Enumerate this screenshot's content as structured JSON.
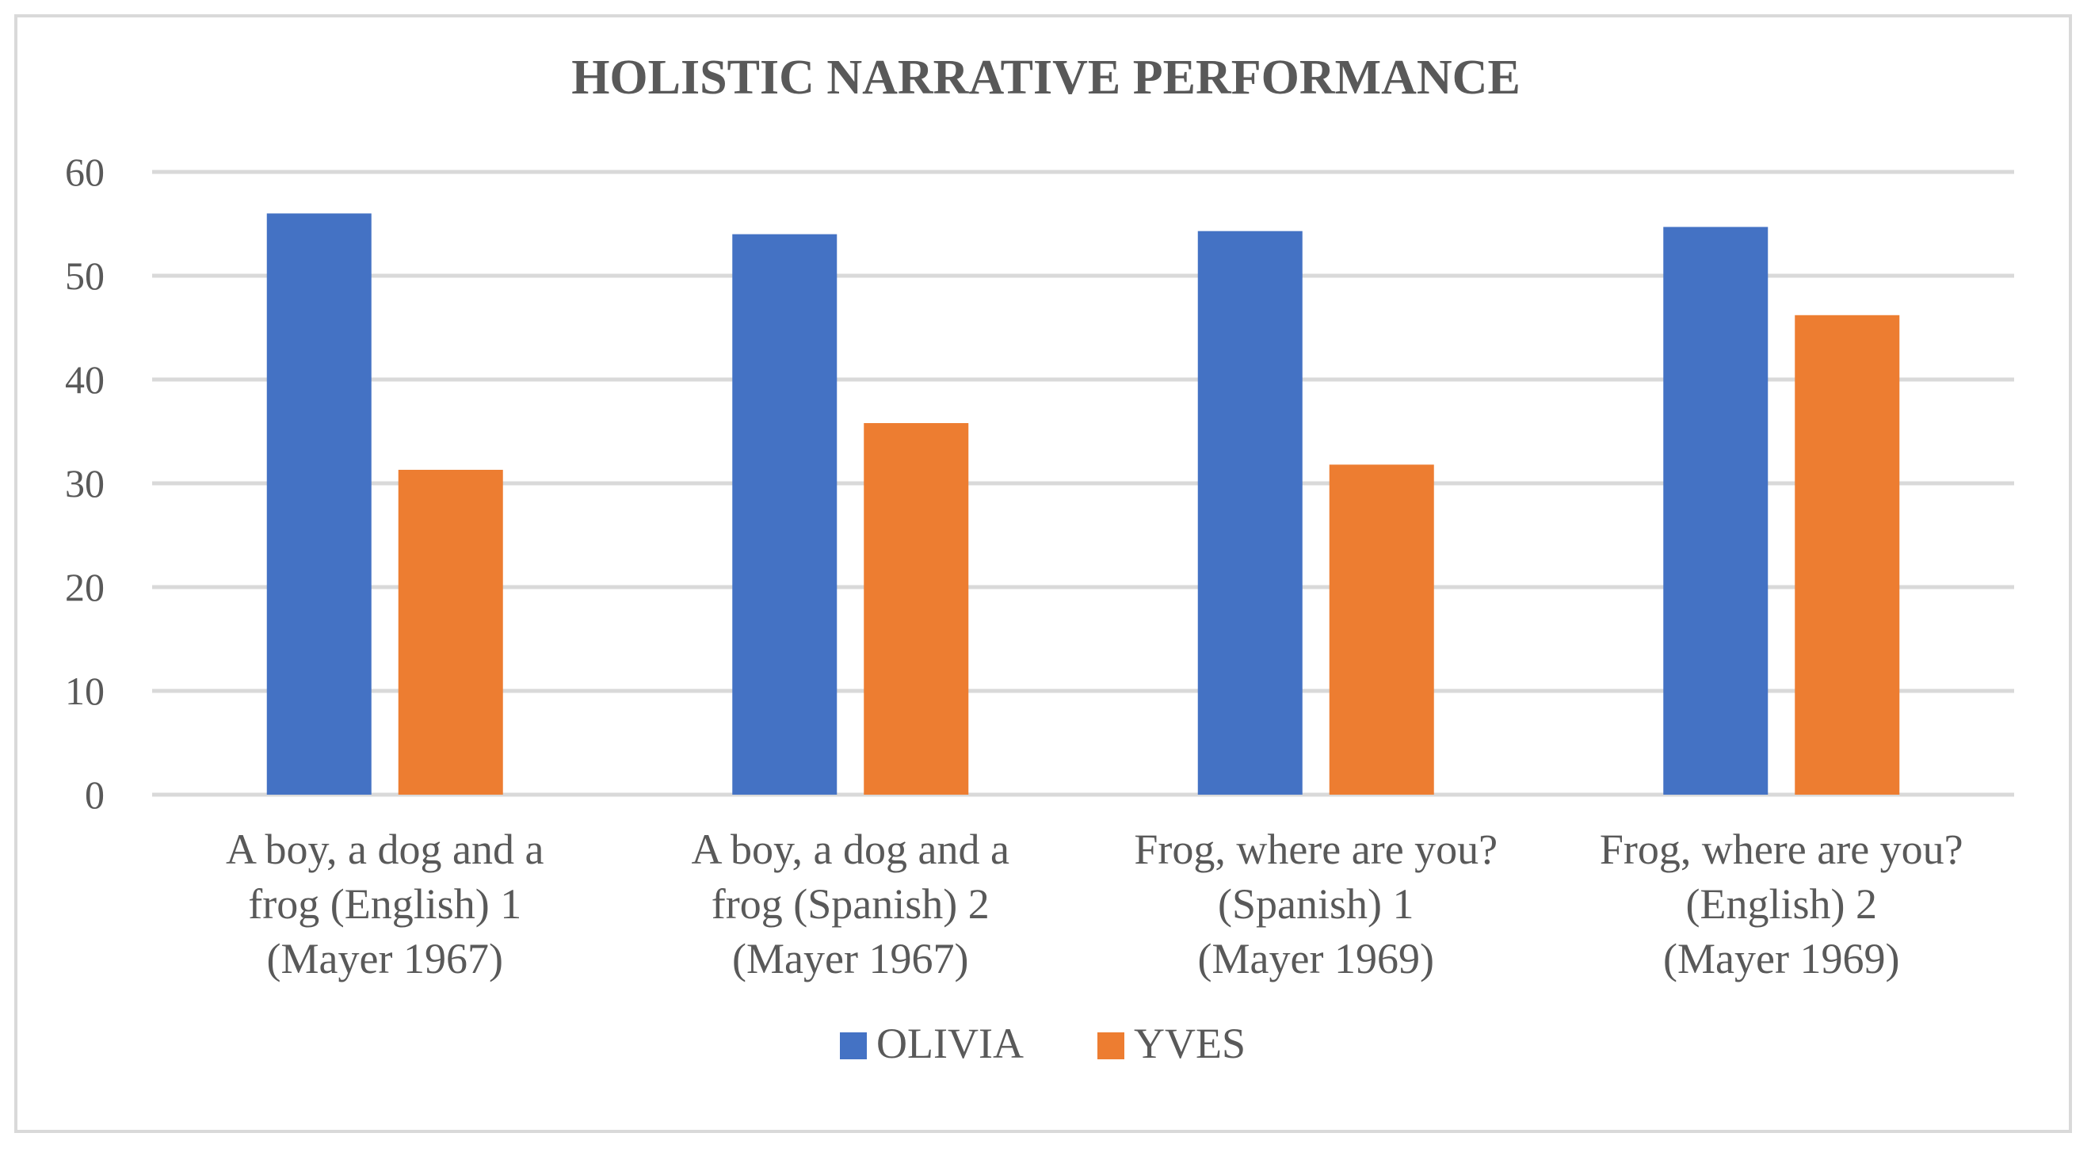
{
  "chart_data": {
    "type": "bar",
    "title": "HOLISTIC NARRATIVE PERFORMANCE",
    "xlabel": "",
    "ylabel": "",
    "ylim": [
      0,
      60
    ],
    "yticks": [
      0,
      10,
      20,
      30,
      40,
      50,
      60
    ],
    "grid": true,
    "legend_position": "bottom",
    "categories": [
      [
        "A boy, a dog and a",
        "frog (English) 1",
        "(Mayer 1967)"
      ],
      [
        "A boy, a dog and a",
        "frog (Spanish) 2",
        "(Mayer 1967)"
      ],
      [
        "Frog, where are you?",
        "(Spanish) 1",
        "(Mayer 1969)"
      ],
      [
        "Frog, where are you?",
        "(English) 2",
        "(Mayer 1969)"
      ]
    ],
    "series": [
      {
        "name": "OLIVIA",
        "color": "#4472c4",
        "values": [
          56,
          54,
          54.3,
          54.7
        ]
      },
      {
        "name": "YVES",
        "color": "#ed7d31",
        "values": [
          31.3,
          35.8,
          31.8,
          46.2
        ]
      }
    ],
    "colors": {
      "grid": "#d9d9d9",
      "text": "#595959",
      "border": "#d9d9d9"
    }
  }
}
